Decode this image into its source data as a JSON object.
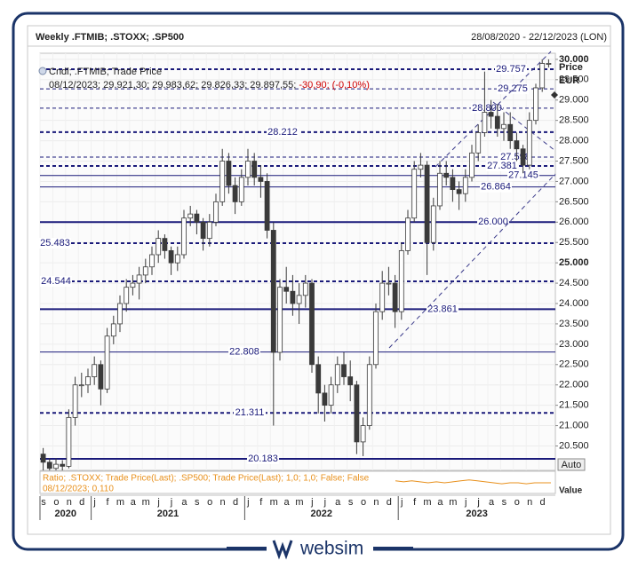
{
  "header": {
    "title": "Weekly .FTMIB; .STOXX; .SP500",
    "range": "28/08/2020 - 22/12/2023 (LON)"
  },
  "chart_data": {
    "type": "candlestick",
    "legend_name": "Cndl; .FTMIB; Trade Price",
    "legend_values": "08/12/2023; 29.921,30; 29.983,62; 29.826,33; 29.897,55;",
    "legend_change": "-30,90; (-0,10%)",
    "y_axis_title": "Price",
    "y_axis_unit": "EUR",
    "ylim": [
      19900,
      30150
    ],
    "yticks": [
      {
        "value": 20500,
        "label": "20.500"
      },
      {
        "value": 21000,
        "label": "21.000"
      },
      {
        "value": 21500,
        "label": "21.500"
      },
      {
        "value": 22000,
        "label": "22.000"
      },
      {
        "value": 22500,
        "label": "22.500"
      },
      {
        "value": 23000,
        "label": "23.000"
      },
      {
        "value": 23500,
        "label": "23.500"
      },
      {
        "value": 24000,
        "label": "24.000"
      },
      {
        "value": 24500,
        "label": "24.500"
      },
      {
        "value": 25000,
        "label": "25.000"
      },
      {
        "value": 25500,
        "label": "25.500"
      },
      {
        "value": 26000,
        "label": "26.000"
      },
      {
        "value": 26500,
        "label": "26.500"
      },
      {
        "value": 27000,
        "label": "27.000"
      },
      {
        "value": 27500,
        "label": "27.500"
      },
      {
        "value": 28000,
        "label": "28.000"
      },
      {
        "value": 28500,
        "label": "28.500"
      },
      {
        "value": 29000,
        "label": "29.000"
      },
      {
        "value": 29500,
        "label": "29.500"
      },
      {
        "value": 30000,
        "label": "30.000"
      }
    ],
    "bold_ticks": [
      25000,
      30000
    ],
    "grid": true,
    "up_color": "#ffffff",
    "down_color": "#3a3a3a",
    "wick_color": "#3a3a3a",
    "months": [
      "s",
      "o",
      "n",
      "d",
      "j",
      "f",
      "m",
      "a",
      "m",
      "j",
      "j",
      "a",
      "s",
      "o",
      "n",
      "d",
      "j",
      "f",
      "m",
      "a",
      "m",
      "j",
      "j",
      "a",
      "s",
      "o",
      "n",
      "d",
      "j",
      "f",
      "m",
      "a",
      "m",
      "j",
      "j",
      "a",
      "s",
      "o",
      "n",
      "d"
    ],
    "years": [
      {
        "label": "2020",
        "start": 0
      },
      {
        "label": "2021",
        "start": 4
      },
      {
        "label": "2022",
        "start": 16
      },
      {
        "label": "2023",
        "start": 28
      }
    ],
    "candles": [
      [
        20300,
        20450,
        19900,
        20100
      ],
      [
        20100,
        20200,
        19900,
        19950
      ],
      [
        19950,
        20200,
        19900,
        20050
      ],
      [
        20050,
        20150,
        19900,
        20000
      ],
      [
        20000,
        21400,
        19950,
        21200
      ],
      [
        21200,
        22200,
        21000,
        22000
      ],
      [
        22000,
        22300,
        21700,
        22000
      ],
      [
        22000,
        22400,
        21800,
        22200
      ],
      [
        22200,
        22700,
        22000,
        22500
      ],
      [
        22500,
        22600,
        21500,
        21900
      ],
      [
        21900,
        23400,
        21800,
        23200
      ],
      [
        23200,
        23700,
        23000,
        23500
      ],
      [
        23500,
        24200,
        23300,
        24000
      ],
      [
        24000,
        24600,
        23800,
        24400
      ],
      [
        24400,
        24700,
        24200,
        24500
      ],
      [
        24500,
        24900,
        24100,
        24700
      ],
      [
        24700,
        25100,
        24500,
        24900
      ],
      [
        24900,
        25400,
        24700,
        25200
      ],
      [
        25200,
        25800,
        25000,
        25600
      ],
      [
        25600,
        25700,
        25100,
        25300
      ],
      [
        25300,
        25400,
        24700,
        25000
      ],
      [
        25000,
        25400,
        24800,
        25200
      ],
      [
        25200,
        26300,
        25100,
        26100
      ],
      [
        26100,
        26400,
        25900,
        26200
      ],
      [
        26200,
        26300,
        25700,
        26000
      ],
      [
        26000,
        26100,
        25300,
        25600
      ],
      [
        25600,
        26200,
        25400,
        26000
      ],
      [
        26000,
        26700,
        25900,
        26500
      ],
      [
        26500,
        27800,
        26400,
        27500
      ],
      [
        27500,
        27700,
        26700,
        26900
      ],
      [
        26900,
        27100,
        26200,
        26500
      ],
      [
        26500,
        27300,
        26400,
        27100
      ],
      [
        27100,
        27800,
        26900,
        27500
      ],
      [
        27500,
        27700,
        26900,
        27100
      ],
      [
        27100,
        27400,
        26600,
        27000
      ],
      [
        27000,
        27200,
        25600,
        25800
      ],
      [
        25800,
        26000,
        21000,
        22800
      ],
      [
        22800,
        24600,
        22600,
        24400
      ],
      [
        24400,
        24900,
        24000,
        24300
      ],
      [
        24300,
        24700,
        23700,
        24000
      ],
      [
        24000,
        24500,
        23500,
        24200
      ],
      [
        24200,
        24700,
        23900,
        24500
      ],
      [
        24500,
        24600,
        22300,
        22500
      ],
      [
        22500,
        22700,
        21300,
        21800
      ],
      [
        21800,
        22000,
        21100,
        21500
      ],
      [
        21500,
        22200,
        21300,
        22000
      ],
      [
        22000,
        22700,
        21800,
        22500
      ],
      [
        22500,
        22800,
        22000,
        22200
      ],
      [
        22200,
        22600,
        21600,
        22000
      ],
      [
        22000,
        22100,
        20300,
        20600
      ],
      [
        20600,
        21200,
        20250,
        21000
      ],
      [
        21000,
        22700,
        20900,
        22500
      ],
      [
        22500,
        24000,
        22400,
        23800
      ],
      [
        23800,
        24800,
        23600,
        24500
      ],
      [
        24500,
        24900,
        24200,
        24500
      ],
      [
        24500,
        24700,
        23400,
        23800
      ],
      [
        23800,
        25500,
        23600,
        25300
      ],
      [
        25300,
        26300,
        25200,
        26100
      ],
      [
        26100,
        27500,
        26000,
        27300
      ],
      [
        27300,
        27700,
        27100,
        27400
      ],
      [
        27400,
        27500,
        24700,
        25500
      ],
      [
        25500,
        26600,
        25300,
        26400
      ],
      [
        26400,
        27500,
        26300,
        27200
      ],
      [
        27200,
        27500,
        26900,
        27100
      ],
      [
        27100,
        27300,
        26500,
        26800
      ],
      [
        26800,
        27000,
        26300,
        26700
      ],
      [
        26700,
        27300,
        26500,
        27100
      ],
      [
        27100,
        27900,
        27000,
        27700
      ],
      [
        27700,
        28400,
        27500,
        28200
      ],
      [
        28200,
        29700,
        28100,
        28700
      ],
      [
        28700,
        29000,
        28300,
        28600
      ],
      [
        28600,
        28900,
        28100,
        28300
      ],
      [
        28300,
        28700,
        28000,
        28400
      ],
      [
        28400,
        28700,
        27800,
        28000
      ],
      [
        28000,
        28200,
        27500,
        27800
      ],
      [
        27800,
        27900,
        27200,
        27400
      ],
      [
        27400,
        28700,
        27300,
        28500
      ],
      [
        28500,
        29400,
        28400,
        29300
      ],
      [
        29300,
        30000,
        29200,
        29900
      ],
      [
        29900,
        30000,
        29800,
        29900
      ]
    ],
    "levels": [
      {
        "value": 29757,
        "label": "29.757",
        "dash": true,
        "weight": 2
      },
      {
        "value": 29275,
        "label": "29.275",
        "dash": true,
        "weight": 1
      },
      {
        "value": 28800,
        "label": "28.800",
        "dash": true,
        "weight": 1
      },
      {
        "value": 28212,
        "label": "28.212",
        "dash": true,
        "weight": 2
      },
      {
        "value": 27598,
        "label": "27.598",
        "dash": true,
        "weight": 1
      },
      {
        "value": 27381,
        "label": "27.381",
        "dash": true,
        "weight": 2
      },
      {
        "value": 27145,
        "label": "27.145",
        "dash": false,
        "weight": 1
      },
      {
        "value": 26864,
        "label": "26.864",
        "dash": false,
        "weight": 1
      },
      {
        "value": 26000,
        "label": "26.000",
        "dash": false,
        "weight": 2
      },
      {
        "value": 25483,
        "label": "25.483",
        "dash": true,
        "weight": 2
      },
      {
        "value": 24544,
        "label": "24.544",
        "dash": true,
        "weight": 2
      },
      {
        "value": 23861,
        "label": "23.861",
        "dash": false,
        "weight": 2
      },
      {
        "value": 22808,
        "label": "22.808",
        "dash": false,
        "weight": 1
      },
      {
        "value": 21311,
        "label": "21.311",
        "dash": true,
        "weight": 2
      },
      {
        "value": 20183,
        "label": "20.183",
        "dash": false,
        "weight": 2
      }
    ],
    "level_color": "#1a1a7a",
    "ratio": {
      "legend": "Ratio; .STOXX; Trade Price(Last); .SP500; Trade Price(Last);  1,0; 1,0; False; False",
      "last": "08/12/2023; 0,110",
      "color": "#e8901c",
      "ylim": [
        0.1,
        0.12
      ],
      "values": [
        0.112,
        0.111,
        0.112,
        0.111,
        0.11,
        0.111,
        0.11,
        0.111,
        0.112,
        0.113,
        0.112,
        0.111,
        0.11,
        0.109,
        0.11,
        0.11,
        0.109,
        0.11,
        0.11,
        0.11
      ]
    },
    "auto_button": "Auto",
    "value_axis_title": "Value"
  },
  "footer": {
    "brand": "websim"
  }
}
